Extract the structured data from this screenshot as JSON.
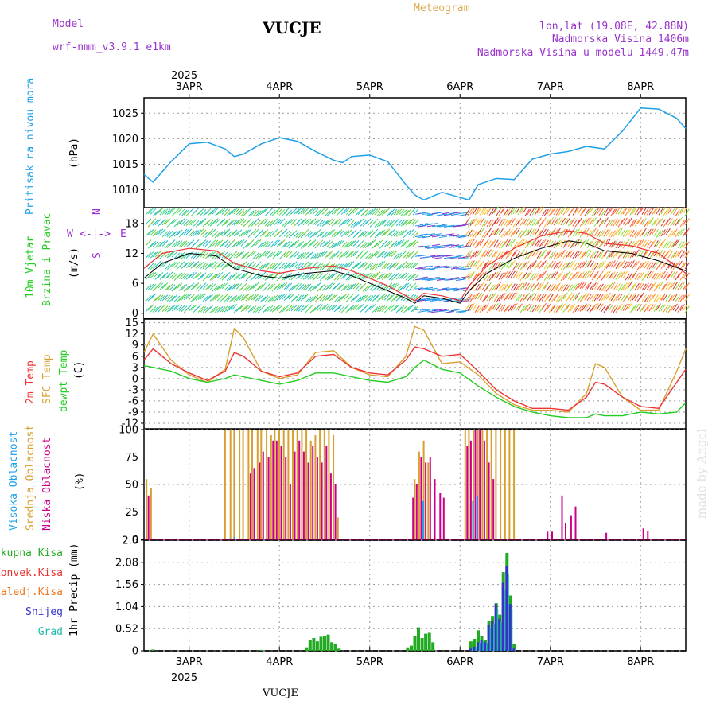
{
  "header": {
    "model_label": "Model",
    "model_name": "wrf-nmm_v3.9.1  e1km",
    "station": "VUCJE",
    "meteogram": "Meteogram",
    "lonlat": "lon,lat (19.08E, 42.88N)",
    "elevation": "Nadmorska Visina 1406m",
    "model_elevation": "Nadmorska Visina u modelu 1449.47m"
  },
  "footer": {
    "station": "VUCJE",
    "credit": "made by Angel"
  },
  "dates": {
    "year": "2025",
    "days": [
      "3APR",
      "4APR",
      "5APR",
      "6APR",
      "7APR",
      "8APR"
    ]
  },
  "panels": {
    "pressure": {
      "ylabel_name": "Pritisak na nivou mora",
      "unit": "(hPa)",
      "ticks": [
        "1010",
        "1015",
        "1020",
        "1025"
      ]
    },
    "wind": {
      "ylabel_line1": "10m Vjetar",
      "ylabel_line2": "Brzina i Pravac",
      "unit": "(m/s)",
      "ticks": [
        "0",
        "6",
        "12",
        "18"
      ],
      "compass": {
        "n": "N",
        "s": "S",
        "e": "E",
        "w": "W",
        "arrows": "<-|->"
      }
    },
    "temp": {
      "labels": [
        "2m Temp",
        "SFC Temp",
        "dewpt Temp"
      ],
      "unit": "(C)",
      "ticks": [
        "-12",
        "-9",
        "-6",
        "-3",
        "0",
        "3",
        "6",
        "9",
        "12",
        "15"
      ]
    },
    "cloud": {
      "labels": [
        "Visoka Oblacnost",
        "Srednja Oblacnost",
        "Niska Oblacnost"
      ],
      "unit": "(%)",
      "ticks": [
        "0",
        "25",
        "50",
        "75",
        "100"
      ]
    },
    "precip": {
      "labels": [
        "Ukupna Kisa",
        "Konvek.Kisa",
        "Zaledj.Kisa",
        "Snijeg",
        "Grad"
      ],
      "ylabel": "1hr Precip (mm)",
      "ticks": [
        "0",
        "0.52",
        "1.04",
        "1.56",
        "2.08",
        "2.6"
      ]
    }
  },
  "colors": {
    "pressure": "#1ea0e8",
    "t2m": "#ee3333",
    "tsfc": "#d8a030",
    "dewpt": "#22cc22",
    "high_cloud": "#1ea0e8",
    "mid_cloud": "#d8a030",
    "low_cloud": "#cc0088",
    "rain_total": "#22aa22",
    "rain_conv": "#ee3333",
    "freezing": "#ee7722",
    "snow": "#3333cc",
    "hail": "#22bbaa",
    "title_purple": "#9933cc",
    "meteogram": "#ddaa55"
  },
  "chart_data": [
    {
      "type": "line",
      "title": "Pritisak na nivou mora",
      "ylabel": "(hPa)",
      "ylim": [
        1006.5,
        1028
      ],
      "x": [
        2.5,
        2.6,
        2.8,
        3.0,
        3.2,
        3.4,
        3.5,
        3.6,
        3.8,
        4.0,
        4.2,
        4.4,
        4.6,
        4.7,
        4.8,
        5.0,
        5.2,
        5.4,
        5.5,
        5.6,
        5.8,
        6.0,
        6.1,
        6.2,
        6.4,
        6.6,
        6.8,
        7.0,
        7.2,
        7.4,
        7.6,
        7.8,
        8.0,
        8.2,
        8.4,
        8.5
      ],
      "series": [
        {
          "values": [
            1013,
            1011.5,
            1015.5,
            1019,
            1019.3,
            1018,
            1016.5,
            1017,
            1019,
            1020.2,
            1019.5,
            1017.5,
            1015.8,
            1015.3,
            1016.5,
            1016.8,
            1015.5,
            1011,
            1009,
            1008,
            1009.5,
            1008.5,
            1008,
            1011,
            1012.2,
            1012,
            1016,
            1017,
            1017.5,
            1018.5,
            1018,
            1021.5,
            1026,
            1025.8,
            1024,
            1022
          ]
        }
      ]
    },
    {
      "type": "line",
      "title": "10m Vjetar Brzina i Pravac",
      "ylabel": "(m/s)",
      "ylim": [
        -1,
        21
      ],
      "x": [
        2.5,
        2.7,
        3.0,
        3.3,
        3.5,
        3.8,
        4.0,
        4.3,
        4.6,
        4.8,
        5.0,
        5.2,
        5.4,
        5.5,
        5.6,
        5.8,
        6.0,
        6.1,
        6.3,
        6.6,
        6.9,
        7.2,
        7.4,
        7.6,
        7.9,
        8.2,
        8.5
      ],
      "series": [
        {
          "name": "speed",
          "values": [
            7,
            10,
            12,
            11.5,
            9,
            7.5,
            7,
            8,
            8.5,
            7.5,
            6,
            4.5,
            3,
            2,
            3.5,
            3,
            2,
            4.5,
            8,
            11,
            13,
            14.5,
            14,
            12.5,
            12,
            10.5,
            8.5
          ]
        },
        {
          "name": "gust",
          "values": [
            9,
            12,
            13,
            12.5,
            10,
            8.5,
            8,
            9,
            9.5,
            8.5,
            7,
            5.5,
            3.5,
            2.5,
            4,
            3.5,
            2.5,
            5.5,
            9.5,
            13,
            15.5,
            16.5,
            16,
            14,
            13.5,
            12,
            8
          ]
        }
      ]
    },
    {
      "type": "line",
      "title": "Temperatura",
      "ylabel": "(C)",
      "ylim": [
        -13.5,
        16
      ],
      "x": [
        2.5,
        2.6,
        2.8,
        3.0,
        3.2,
        3.4,
        3.5,
        3.6,
        3.8,
        4.0,
        4.2,
        4.4,
        4.6,
        4.8,
        5.0,
        5.2,
        5.4,
        5.5,
        5.6,
        5.8,
        6.0,
        6.2,
        6.4,
        6.6,
        6.8,
        7.0,
        7.2,
        7.4,
        7.5,
        7.6,
        7.8,
        8.0,
        8.2,
        8.4,
        8.5
      ],
      "series": [
        {
          "name": "2m Temp",
          "values": [
            5,
            8,
            4,
            1.5,
            -0.5,
            2,
            7,
            6,
            2,
            0.5,
            1.5,
            6,
            6.5,
            3,
            1.5,
            1,
            5,
            8.5,
            8,
            6,
            6.5,
            2,
            -3,
            -6,
            -8,
            -8,
            -8.5,
            -5,
            -1,
            -1.5,
            -5,
            -7.5,
            -8,
            -1,
            2.5
          ]
        },
        {
          "name": "SFC Temp",
          "values": [
            7,
            12,
            5,
            1,
            -1,
            2.5,
            13.5,
            11,
            2,
            0,
            1,
            7,
            7.5,
            3,
            1,
            0.5,
            6,
            14,
            13,
            4,
            4.5,
            1,
            -4,
            -7,
            -8.5,
            -8.5,
            -9,
            -4,
            4,
            3,
            -5,
            -8.5,
            -8.5,
            2,
            8
          ]
        },
        {
          "name": "dewpt Temp",
          "values": [
            3.5,
            3,
            2,
            0,
            -1,
            0,
            1,
            0.5,
            -0.5,
            -1.5,
            -0.5,
            1.5,
            1.5,
            0.5,
            -0.5,
            -1,
            0.5,
            3,
            5,
            2.5,
            1.5,
            -2,
            -5,
            -7.5,
            -9,
            -10,
            -10.5,
            -10.5,
            -9.5,
            -10,
            -10,
            -9,
            -9.5,
            -9,
            -6.5
          ]
        }
      ]
    },
    {
      "type": "bar",
      "title": "Oblacnost",
      "ylabel": "(%)",
      "ylim": [
        0,
        100
      ],
      "x": [
        2.55,
        2.6,
        3.42,
        3.48,
        3.52,
        3.58,
        3.62,
        3.68,
        3.72,
        3.78,
        3.82,
        3.88,
        3.93,
        3.97,
        4.02,
        4.07,
        4.12,
        4.17,
        4.22,
        4.27,
        4.32,
        4.37,
        4.42,
        4.47,
        4.52,
        4.57,
        4.62,
        4.67,
        5.48,
        5.52,
        5.57,
        5.62,
        5.67,
        5.72,
        5.78,
        5.82,
        6.08,
        6.12,
        6.17,
        6.22,
        6.27,
        6.32,
        6.37,
        6.42,
        6.47,
        6.52,
        6.57,
        6.62,
        6.97,
        7.02,
        7.13,
        7.17,
        7.23,
        7.28,
        7.62,
        8.03,
        8.08
      ],
      "series": [
        {
          "name": "Srednja Oblacnost",
          "values": [
            55,
            47,
            100,
            100,
            100,
            100,
            100,
            100,
            100,
            100,
            100,
            100,
            95,
            100,
            100,
            100,
            100,
            100,
            100,
            100,
            100,
            90,
            95,
            100,
            100,
            100,
            95,
            20,
            0,
            55,
            80,
            90,
            70,
            0,
            0,
            0,
            100,
            100,
            100,
            100,
            100,
            100,
            100,
            100,
            100,
            100,
            100,
            100,
            0,
            0,
            0,
            0,
            0,
            0,
            0,
            0,
            0
          ]
        },
        {
          "name": "Niska Oblacnost",
          "values": [
            40,
            0,
            0,
            0,
            0,
            0,
            0,
            60,
            65,
            70,
            80,
            75,
            90,
            90,
            85,
            75,
            50,
            80,
            90,
            80,
            70,
            85,
            75,
            70,
            85,
            60,
            50,
            0,
            38,
            50,
            75,
            70,
            75,
            55,
            42,
            38,
            85,
            90,
            100,
            100,
            90,
            70,
            55,
            0,
            0,
            0,
            0,
            0,
            7,
            7,
            40,
            15,
            22,
            30,
            6,
            10,
            8
          ]
        },
        {
          "name": "Visoka Oblacnost",
          "values": [
            0,
            0,
            0,
            2,
            0,
            0,
            0,
            0,
            0,
            0,
            0,
            0,
            0,
            0,
            0,
            0,
            0,
            0,
            0,
            0,
            0,
            0,
            0,
            0,
            0,
            0,
            0,
            0,
            0,
            0,
            35,
            0,
            0,
            0,
            0,
            0,
            0,
            35,
            40,
            0,
            0,
            0,
            0,
            0,
            0,
            0,
            0,
            0,
            0,
            0,
            0,
            0,
            0,
            0,
            0,
            0,
            0
          ]
        }
      ]
    },
    {
      "type": "bar",
      "title": "1hr Precip",
      "ylabel": "1hr Precip (mm)",
      "ylim": [
        0,
        2.6
      ],
      "x": [
        2.6,
        3.8,
        4.3,
        4.34,
        4.38,
        4.42,
        4.46,
        4.5,
        4.54,
        4.58,
        4.62,
        4.66,
        5.42,
        5.46,
        5.5,
        5.54,
        5.58,
        5.62,
        5.66,
        5.7,
        6.12,
        6.16,
        6.2,
        6.24,
        6.28,
        6.32,
        6.36,
        6.4,
        6.44,
        6.48,
        6.52,
        6.56,
        6.6,
        6.64
      ],
      "series": [
        {
          "name": "Ukupna Kisa",
          "values": [
            0.03,
            0.02,
            0.08,
            0.25,
            0.3,
            0.22,
            0.33,
            0.35,
            0.38,
            0.2,
            0.15,
            0.05,
            0.08,
            0.12,
            0.35,
            0.55,
            0.3,
            0.4,
            0.42,
            0.2,
            0.22,
            0.28,
            0.48,
            0.35,
            0.25,
            0.7,
            0.82,
            1.12,
            0.85,
            1.85,
            2.3,
            1.3,
            0.15,
            0
          ]
        },
        {
          "name": "Snijeg",
          "values": [
            0,
            0,
            0,
            0,
            0,
            0,
            0,
            0,
            0,
            0,
            0,
            0,
            0,
            0,
            0,
            0,
            0,
            0,
            0,
            0,
            0.05,
            0.1,
            0.2,
            0.25,
            0.2,
            0.6,
            0.7,
            1.1,
            0.75,
            1.6,
            2.0,
            1.1,
            0.05,
            0
          ]
        }
      ]
    }
  ]
}
